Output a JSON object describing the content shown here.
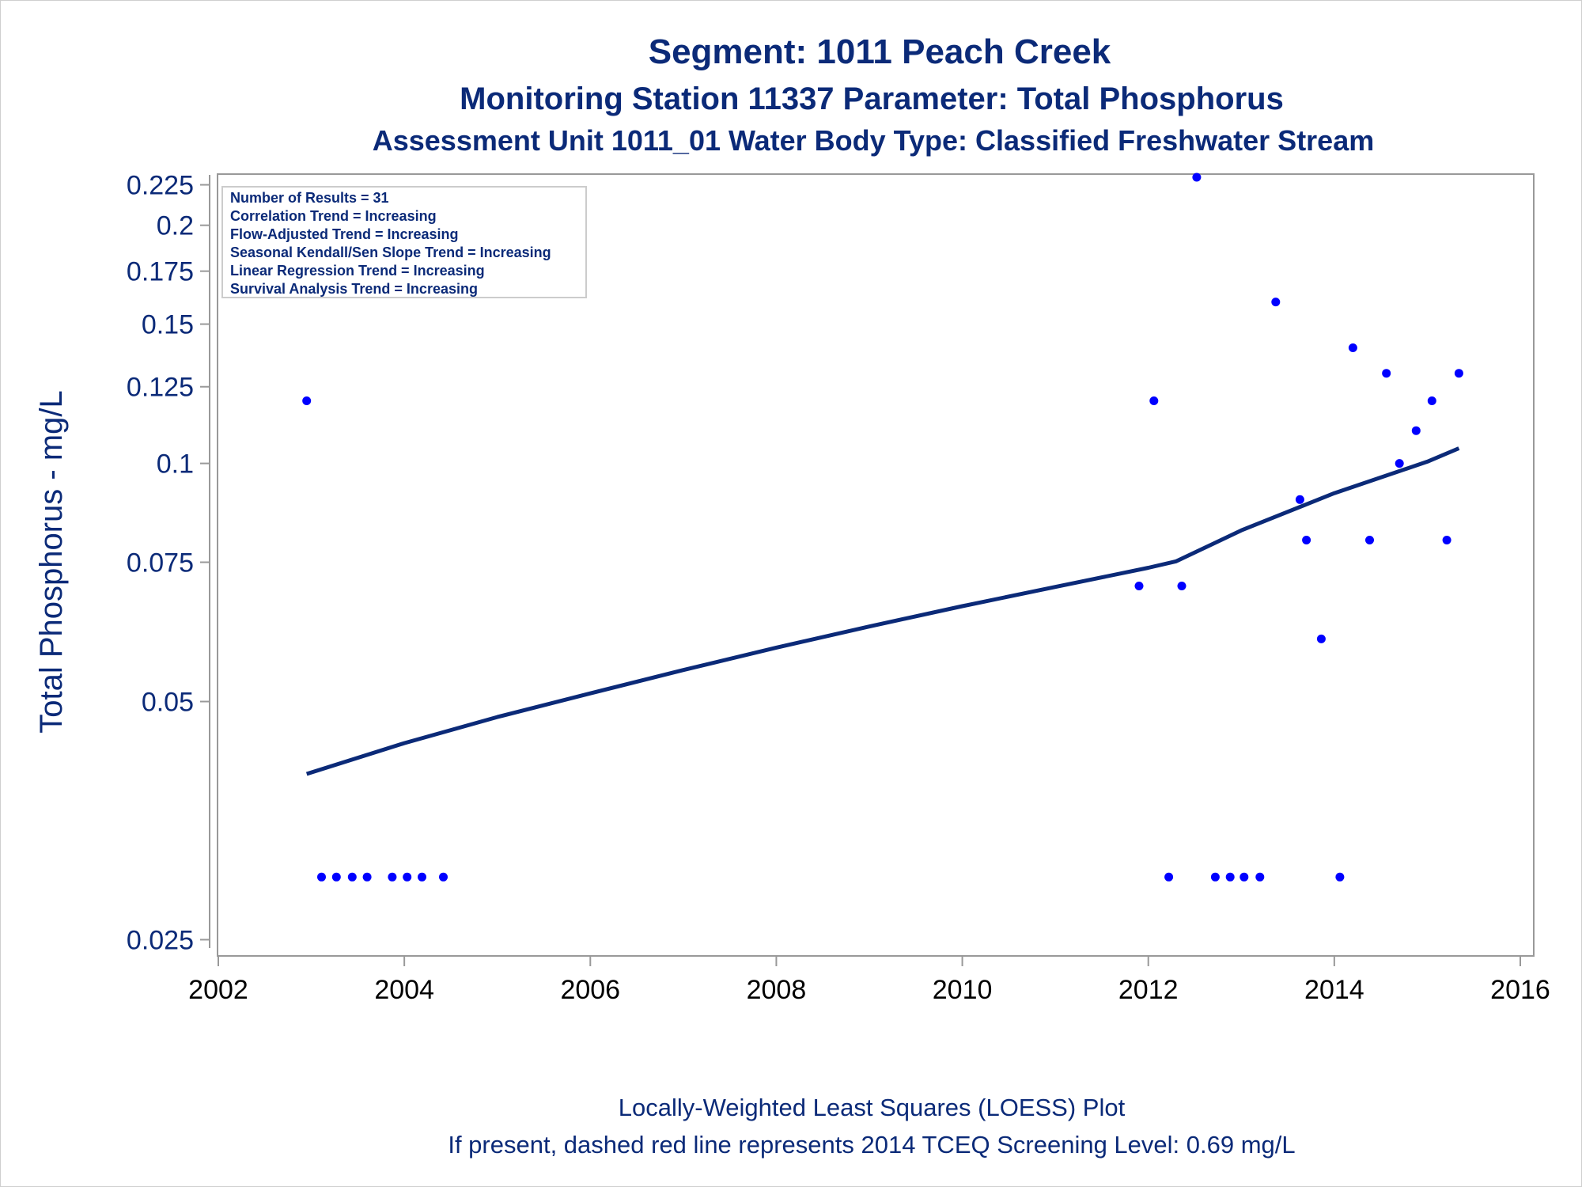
{
  "chart_data": {
    "type": "scatter",
    "title": "Segment: 1011  Peach Creek",
    "subtitle": "Monitoring Station 11337 Parameter: Total Phosphorus",
    "subtitle2": "Assessment Unit 1011_01   Water Body Type: Classified Freshwater Stream",
    "ylabel": "Total Phosphorus - mg/L",
    "xlabel": "",
    "footnote1": "Locally-Weighted Least Squares (LOESS) Plot",
    "footnote2": "If present, dashed red line represents 2014 TCEQ Screening Level: 0.69 mg/L",
    "y_scale": "log",
    "xlim": [
      2002,
      2016
    ],
    "ylim": [
      0.0244,
      0.2316
    ],
    "x_ticks": [
      "2002",
      "2004",
      "2006",
      "2008",
      "2010",
      "2012",
      "2014",
      "2016"
    ],
    "y_ticks": [
      "0.025",
      "0.05",
      "0.075",
      "0.1",
      "0.125",
      "0.15",
      "0.175",
      "0.2",
      "0.225"
    ],
    "grid": false,
    "legend_box_placement": "top-left",
    "legend_box_lines": [
      "Number of Results = 31",
      "Correlation Trend = Increasing",
      "Flow-Adjusted Trend = Increasing",
      "Seasonal Kendall/Sen Slope Trend = Increasing",
      "Linear Regression Trend = Increasing",
      "Survival Analysis Trend = Increasing"
    ],
    "colors": {
      "points": "#0000ff",
      "trend_line": "#0b2a78",
      "text": "#0b2a78",
      "axis": "#999999"
    },
    "series": [
      {
        "type": "scatter",
        "x": [
          2002.95,
          2003.11,
          2003.27,
          2003.44,
          2003.6,
          2003.87,
          2004.03,
          2004.19,
          2004.42,
          2011.9,
          2012.06,
          2012.22,
          2012.36,
          2012.52,
          2012.72,
          2012.88,
          2013.03,
          2013.2,
          2013.37,
          2013.63,
          2013.7,
          2013.86,
          2014.06,
          2014.2,
          2014.38,
          2014.56,
          2014.7,
          2014.88,
          2015.05,
          2015.21,
          2015.34
        ],
        "y": [
          0.12,
          0.03,
          0.03,
          0.03,
          0.03,
          0.03,
          0.03,
          0.03,
          0.03,
          0.07,
          0.12,
          0.03,
          0.07,
          0.23,
          0.03,
          0.03,
          0.03,
          0.03,
          0.16,
          0.09,
          0.08,
          0.06,
          0.03,
          0.14,
          0.08,
          0.13,
          0.1,
          0.11,
          0.12,
          0.08,
          0.13
        ]
      },
      {
        "type": "line",
        "x": [
          2002.95,
          2004,
          2005,
          2006,
          2007,
          2008,
          2009,
          2010,
          2011,
          2012,
          2012.3,
          2013,
          2014,
          2015,
          2015.34
        ],
        "y": [
          0.0405,
          0.0443,
          0.0478,
          0.0512,
          0.0548,
          0.0585,
          0.0622,
          0.066,
          0.0698,
          0.0738,
          0.0752,
          0.0823,
          0.0917,
          0.1005,
          0.1045
        ]
      }
    ]
  }
}
